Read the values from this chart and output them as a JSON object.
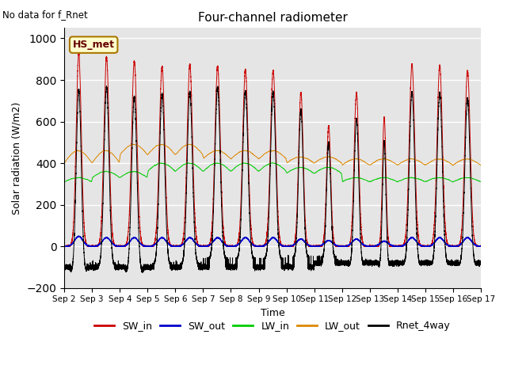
{
  "title": "Four-channel radiometer",
  "xlabel": "Time",
  "ylabel": "Solar radiation (W/m2)",
  "top_left_text": "No data for f_Rnet",
  "station_label": "HS_met",
  "ylim": [
    -200,
    1050
  ],
  "background_color": "#e5e5e5",
  "legend_entries": [
    "SW_in",
    "SW_out",
    "LW_in",
    "LW_out",
    "Rnet_4way"
  ],
  "legend_colors": [
    "#cc0000",
    "#0000cc",
    "#00cc00",
    "#dd8800",
    "#000000"
  ],
  "x_tick_labels": [
    "Sep 2",
    "Sep 3",
    "Sep 4",
    "Sep 5",
    "Sep 6",
    "Sep 7",
    "Sep 8",
    "Sep 9",
    "Sep 10",
    "Sep 11",
    "Sep 12",
    "Sep 13",
    "Sep 14",
    "Sep 15",
    "Sep 16",
    "Sep 17"
  ],
  "n_days": 15,
  "figsize": [
    6.4,
    4.8
  ],
  "dpi": 100
}
